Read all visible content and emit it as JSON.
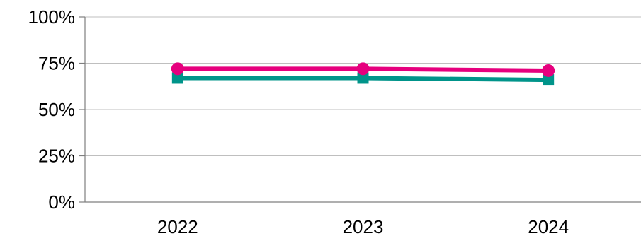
{
  "chart_data": {
    "type": "line",
    "categories": [
      "2022",
      "2023",
      "2024"
    ],
    "y_ticks": [
      "0%",
      "25%",
      "50%",
      "75%",
      "100%"
    ],
    "ylim": [
      0,
      100
    ],
    "grid": true,
    "legend": "none",
    "series": [
      {
        "values": [
          72,
          72,
          71
        ],
        "color": "#e6007e",
        "marker": "circle"
      },
      {
        "values": [
          67,
          67,
          66
        ],
        "color": "#00948a",
        "marker": "square"
      }
    ]
  }
}
